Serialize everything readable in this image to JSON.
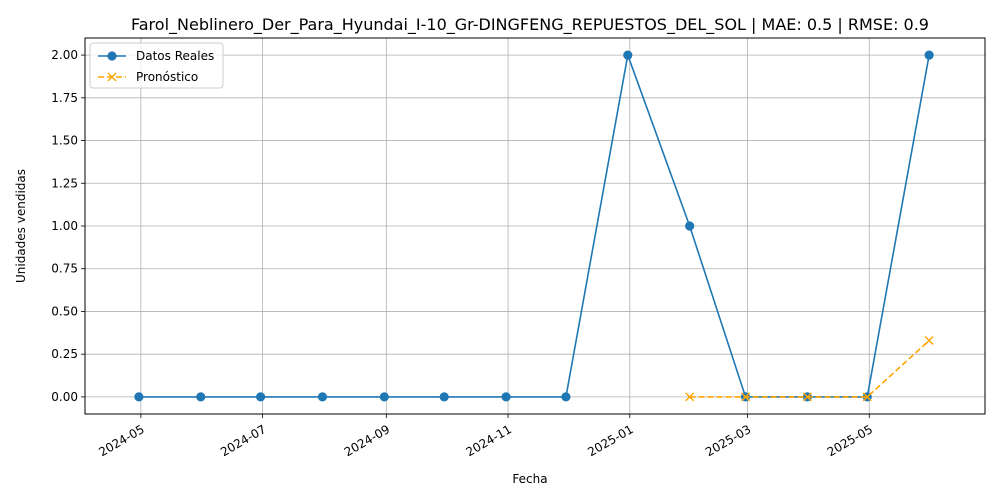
{
  "chart_data": {
    "type": "line",
    "title": "Farol_Neblinero_Der_Para_Hyundai_I-10_Gr-DINGFENG_REPUESTOS_DEL_SOL | MAE: 0.5 | RMSE: 0.9",
    "xlabel": "Fecha",
    "ylabel": "Unidades vendidas",
    "x_type": "date",
    "xlim": [
      "2024-04-03",
      "2025-06-28"
    ],
    "ylim": [
      -0.1,
      2.1
    ],
    "x_ticks": [
      "2024-05-01",
      "2024-07-01",
      "2024-09-01",
      "2024-11-01",
      "2025-01-01",
      "2025-03-01",
      "2025-05-01"
    ],
    "x_tick_labels": [
      "2024-05",
      "2024-07",
      "2024-09",
      "2024-11",
      "2025-01",
      "2025-03",
      "2025-05"
    ],
    "y_ticks": [
      0.0,
      0.25,
      0.5,
      0.75,
      1.0,
      1.25,
      1.5,
      1.75,
      2.0
    ],
    "y_tick_labels": [
      "0.00",
      "0.25",
      "0.50",
      "0.75",
      "1.00",
      "1.25",
      "1.50",
      "1.75",
      "2.00"
    ],
    "grid": true,
    "legend_position": "top-left",
    "series": [
      {
        "name": "Datos Reales",
        "color": "#1f77b4",
        "marker": "circle",
        "linestyle": "solid",
        "x": [
          "2024-04-30",
          "2024-05-31",
          "2024-06-30",
          "2024-07-31",
          "2024-08-31",
          "2024-09-30",
          "2024-10-31",
          "2024-11-30",
          "2024-12-31",
          "2025-01-31",
          "2025-02-28",
          "2025-03-31",
          "2025-04-30",
          "2025-05-31"
        ],
        "values": [
          0,
          0,
          0,
          0,
          0,
          0,
          0,
          0,
          2,
          1,
          0,
          0,
          0,
          2
        ]
      },
      {
        "name": "Pronóstico",
        "color": "#ffa500",
        "marker": "x",
        "linestyle": "dashed",
        "x": [
          "2025-01-31",
          "2025-02-28",
          "2025-03-31",
          "2025-04-30",
          "2025-05-31"
        ],
        "values": [
          0,
          0,
          0,
          0,
          0.33
        ]
      }
    ]
  }
}
